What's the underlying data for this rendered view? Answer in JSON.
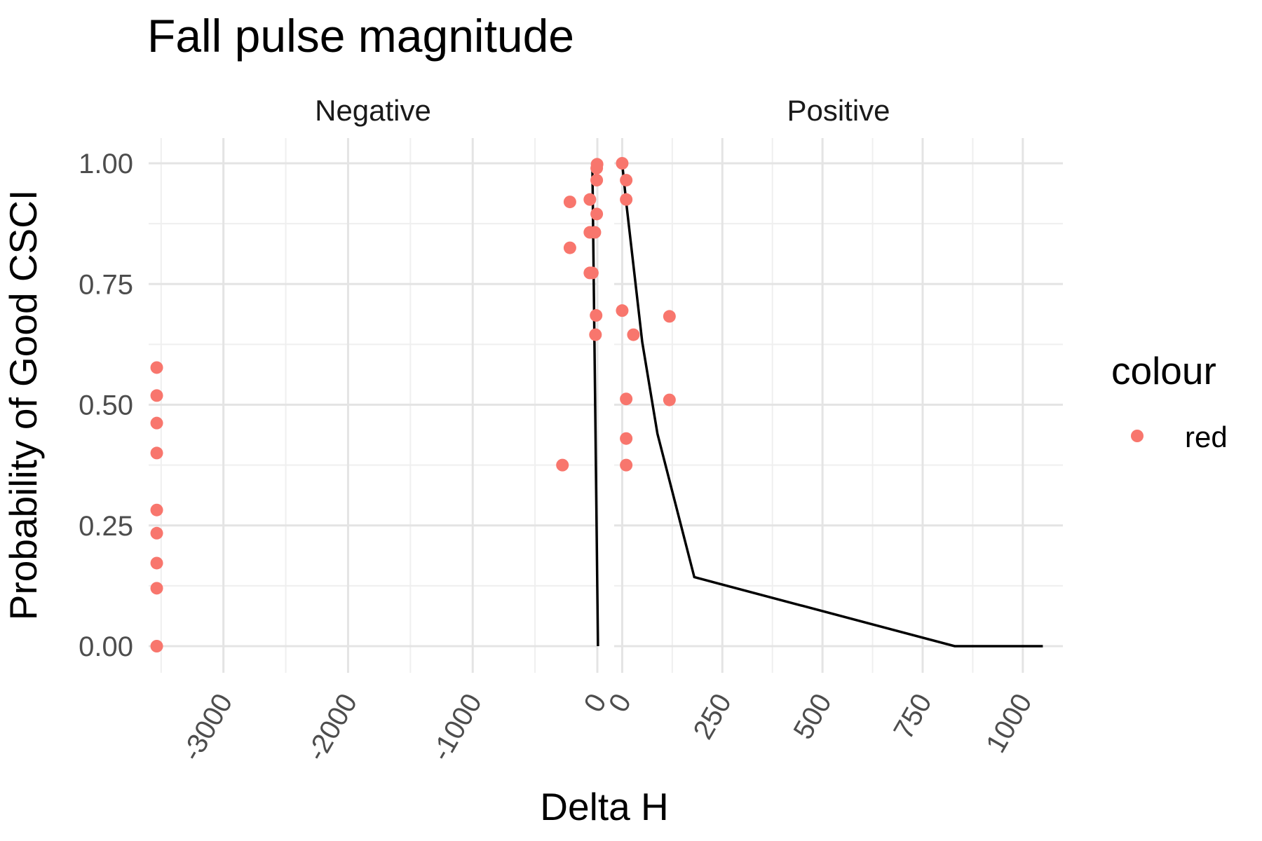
{
  "chart_data": {
    "type": "scatter",
    "title": "Fall pulse magnitude",
    "xlabel": "Delta H",
    "ylabel": "Probability of Good CSCI",
    "y_ticks": [
      "0.00",
      "0.25",
      "0.50",
      "0.75",
      "1.00"
    ],
    "ylim": [
      0,
      1
    ],
    "grid": true,
    "legend": {
      "title": "colour",
      "position": "right",
      "entries": [
        {
          "label": "red",
          "color": "#F8766D"
        }
      ]
    },
    "point_color": "#F8766D",
    "line_color": "#000000",
    "panels": [
      {
        "label": "Negative",
        "xlim": [
          -3600,
          0
        ],
        "x_ticks": [
          -3000,
          -2000,
          -1000,
          0
        ],
        "x_tick_labels": [
          "-3000",
          "-2000",
          "-1000",
          "0"
        ],
        "points": [
          {
            "x": -3535,
            "y": 0.577
          },
          {
            "x": -3535,
            "y": 0.519
          },
          {
            "x": -3535,
            "y": 0.462
          },
          {
            "x": -3535,
            "y": 0.4
          },
          {
            "x": -3535,
            "y": 0.282
          },
          {
            "x": -3535,
            "y": 0.234
          },
          {
            "x": -3535,
            "y": 0.172
          },
          {
            "x": -3535,
            "y": 0.12
          },
          {
            "x": -3535,
            "y": 0.0
          },
          {
            "x": -280,
            "y": 0.375
          },
          {
            "x": -220,
            "y": 0.92
          },
          {
            "x": -220,
            "y": 0.825
          },
          {
            "x": -60,
            "y": 0.925
          },
          {
            "x": -60,
            "y": 0.857
          },
          {
            "x": -60,
            "y": 0.773
          },
          {
            "x": -40,
            "y": 0.773
          },
          {
            "x": -20,
            "y": 0.857
          },
          {
            "x": -15,
            "y": 0.645
          },
          {
            "x": -10,
            "y": 0.685
          },
          {
            "x": -5,
            "y": 0.895
          },
          {
            "x": -5,
            "y": 0.965
          },
          {
            "x": -5,
            "y": 0.99
          },
          {
            "x": -2,
            "y": 0.998
          }
        ],
        "line": [
          {
            "x": -40,
            "y": 1.0
          },
          {
            "x": 5,
            "y": 0.0
          }
        ]
      },
      {
        "label": "Positive",
        "xlim": [
          -20,
          1100
        ],
        "x_ticks": [
          0,
          250,
          500,
          750,
          1000
        ],
        "x_tick_labels": [
          "0",
          "250",
          "500",
          "750",
          "1000"
        ],
        "points": [
          {
            "x": 0,
            "y": 1.0
          },
          {
            "x": 10,
            "y": 0.965
          },
          {
            "x": 10,
            "y": 0.925
          },
          {
            "x": 0,
            "y": 0.695
          },
          {
            "x": 28,
            "y": 0.645
          },
          {
            "x": 118,
            "y": 0.683
          },
          {
            "x": 10,
            "y": 0.512
          },
          {
            "x": 118,
            "y": 0.51
          },
          {
            "x": 10,
            "y": 0.43
          },
          {
            "x": 10,
            "y": 0.375
          }
        ],
        "line": [
          {
            "x": 0,
            "y": 1.0
          },
          {
            "x": 10,
            "y": 0.92
          },
          {
            "x": 50,
            "y": 0.63
          },
          {
            "x": 88,
            "y": 0.44
          },
          {
            "x": 180,
            "y": 0.143
          },
          {
            "x": 830,
            "y": 0.0
          },
          {
            "x": 1050,
            "y": 0.0
          }
        ]
      }
    ]
  }
}
